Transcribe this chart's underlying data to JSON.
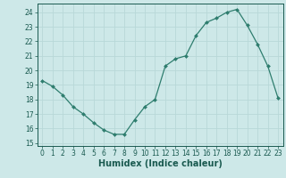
{
  "x": [
    0,
    1,
    2,
    3,
    4,
    5,
    6,
    7,
    8,
    9,
    10,
    11,
    12,
    13,
    14,
    15,
    16,
    17,
    18,
    19,
    20,
    21,
    22,
    23
  ],
  "y": [
    19.3,
    18.9,
    18.3,
    17.5,
    17.0,
    16.4,
    15.9,
    15.6,
    15.6,
    16.6,
    17.5,
    18.0,
    20.3,
    20.8,
    21.0,
    22.4,
    23.3,
    23.6,
    24.0,
    24.2,
    23.1,
    21.8,
    20.3,
    18.1
  ],
  "line_color": "#2e7d6e",
  "marker": "D",
  "marker_size": 2.0,
  "bg_color": "#cde8e8",
  "grid_color": "#b8d8d8",
  "xlabel": "Humidex (Indice chaleur)",
  "ylim": [
    14.8,
    24.6
  ],
  "xlim": [
    -0.5,
    23.5
  ],
  "yticks": [
    15,
    16,
    17,
    18,
    19,
    20,
    21,
    22,
    23,
    24
  ],
  "xticks": [
    0,
    1,
    2,
    3,
    4,
    5,
    6,
    7,
    8,
    9,
    10,
    11,
    12,
    13,
    14,
    15,
    16,
    17,
    18,
    19,
    20,
    21,
    22,
    23
  ],
  "tick_fontsize": 5.5,
  "xlabel_fontsize": 7.0,
  "label_color": "#1a5a50",
  "linewidth": 0.9
}
